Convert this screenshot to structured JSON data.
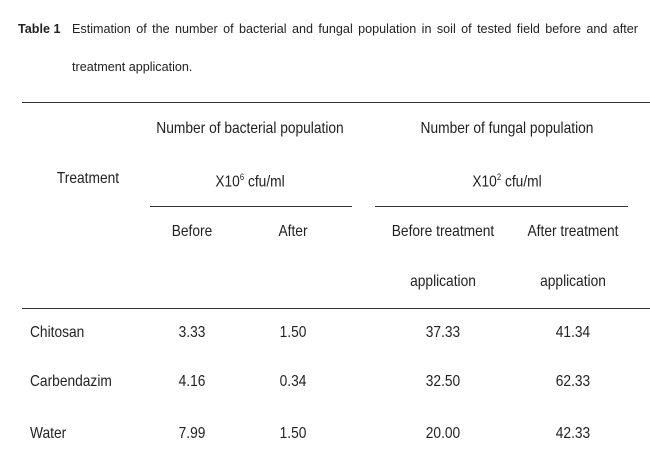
{
  "caption": {
    "label": "Table 1",
    "text": "Estimation of the number of bacterial and fungal population in soil of tested field before and after treatment application."
  },
  "table": {
    "header": {
      "treatment": "Treatment",
      "bacterial": {
        "title": "Number of bacterial population",
        "unit_prefix": "X10",
        "exponent": "6",
        "unit": "cfu/ml",
        "sub": [
          "Before",
          "After"
        ]
      },
      "fungal": {
        "title": "Number of fungal population",
        "unit_prefix": "X10",
        "exponent": "2",
        "unit": "cfu/ml",
        "sub": [
          [
            "Before treatment",
            "application"
          ],
          [
            "After treatment",
            "application"
          ]
        ]
      }
    },
    "rows": [
      [
        "Chitosan",
        "3.33",
        "1.50",
        "37.33",
        "41.34"
      ],
      [
        "Carbendazim",
        "4.16",
        "0.34",
        "32.50",
        "62.33"
      ],
      [
        "Water",
        "7.99",
        "1.50",
        "20.00",
        "42.33"
      ]
    ]
  }
}
